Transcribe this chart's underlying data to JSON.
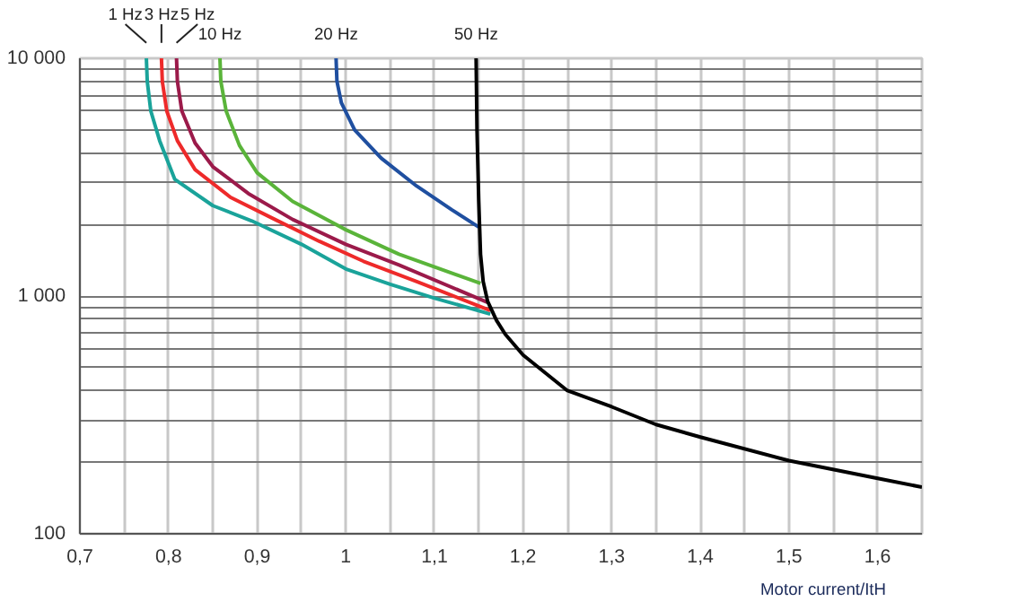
{
  "chart_data": {
    "type": "line",
    "xlabel": "Motor current/ItH",
    "log": "y",
    "grid": true,
    "legend": false,
    "marker": "none",
    "line_style": "solid",
    "xlim": [
      0.7,
      1.65
    ],
    "ylim": [
      100,
      10000
    ],
    "xticks": [
      {
        "value": 0.7,
        "label": "0,7"
      },
      {
        "value": 0.75,
        "label": null
      },
      {
        "value": 0.8,
        "label": "0,8"
      },
      {
        "value": 0.85,
        "label": null
      },
      {
        "value": 0.9,
        "label": "0,9"
      },
      {
        "value": 0.95,
        "label": null
      },
      1,
      {
        "value": 1.05,
        "label": null
      },
      {
        "value": 1.1,
        "label": "1,1"
      },
      {
        "value": 1.15,
        "label": null
      },
      {
        "value": 1.2,
        "label": "1,2"
      },
      {
        "value": 1.25,
        "label": null
      },
      {
        "value": 1.3,
        "label": "1,3"
      },
      {
        "value": 1.35,
        "label": null
      },
      {
        "value": 1.4,
        "label": "1,4"
      },
      {
        "value": 1.45,
        "label": null
      },
      {
        "value": 1.5,
        "label": "1,5"
      },
      {
        "value": 1.55,
        "label": null
      },
      {
        "value": 1.6,
        "label": "1,6"
      }
    ],
    "yticks": [
      100,
      {
        "value": 200,
        "label": null
      },
      {
        "value": 300,
        "label": null
      },
      {
        "value": 400,
        "label": null
      },
      {
        "value": 500,
        "label": null
      },
      {
        "value": 600,
        "label": null
      },
      {
        "value": 700,
        "label": null
      },
      {
        "value": 800,
        "label": null
      },
      {
        "value": 900,
        "label": null
      },
      {
        "value": 1000,
        "label": "1 000"
      },
      {
        "value": 2000,
        "label": null
      },
      {
        "value": 3000,
        "label": null
      },
      {
        "value": 4000,
        "label": null
      },
      {
        "value": 5000,
        "label": null
      },
      {
        "value": 6000,
        "label": null
      },
      {
        "value": 7000,
        "label": null
      },
      {
        "value": 8000,
        "label": null
      },
      {
        "value": 9000,
        "label": null
      },
      {
        "value": 10000,
        "label": "10 000"
      }
    ],
    "series": [
      {
        "name": "1 Hz",
        "color": "#1aa39a",
        "x": [
          0.775,
          0.776,
          0.78,
          0.79,
          0.807,
          0.85,
          0.894,
          0.95,
          1.0,
          1.05,
          1.1,
          1.163
        ],
        "values": [
          10000,
          8000,
          6000,
          4500,
          3100,
          2400,
          2070,
          1650,
          1300,
          1120,
          980,
          840
        ]
      },
      {
        "name": "3 Hz",
        "color": "#ee2a2a",
        "x": [
          0.792,
          0.793,
          0.798,
          0.81,
          0.83,
          0.87,
          0.92,
          0.97,
          1.02,
          1.08,
          1.163
        ],
        "values": [
          10000,
          8000,
          6000,
          4500,
          3400,
          2600,
          2100,
          1700,
          1400,
          1150,
          870
        ]
      },
      {
        "name": "5 Hz",
        "color": "#9b1a4a",
        "x": [
          0.809,
          0.81,
          0.815,
          0.83,
          0.85,
          0.89,
          0.94,
          1.0,
          1.06,
          1.16
        ],
        "values": [
          10000,
          8000,
          6000,
          4400,
          3500,
          2700,
          2100,
          1650,
          1350,
          940
        ]
      },
      {
        "name": "10 Hz",
        "color": "#5ab43a",
        "x": [
          0.858,
          0.859,
          0.865,
          0.88,
          0.9,
          0.94,
          1.0,
          1.06,
          1.152
        ],
        "values": [
          10000,
          8000,
          6000,
          4300,
          3300,
          2500,
          1900,
          1500,
          1130
        ]
      },
      {
        "name": "20 Hz",
        "color": "#1f4fa0",
        "x": [
          0.989,
          0.99,
          0.995,
          1.01,
          1.04,
          1.08,
          1.12,
          1.15
        ],
        "values": [
          10000,
          8000,
          6500,
          5000,
          3800,
          2900,
          2300,
          1950
        ]
      },
      {
        "name": "50 Hz",
        "color": "#000000",
        "x": [
          1.147,
          1.148,
          1.15,
          1.152,
          1.155,
          1.16,
          1.17,
          1.18,
          1.2,
          1.25,
          1.3,
          1.35,
          1.4,
          1.5,
          1.6,
          1.65
        ],
        "values": [
          10000,
          5000,
          2500,
          1500,
          1150,
          950,
          790,
          690,
          565,
          400,
          342,
          288,
          255,
          203,
          171,
          157
        ]
      }
    ]
  }
}
